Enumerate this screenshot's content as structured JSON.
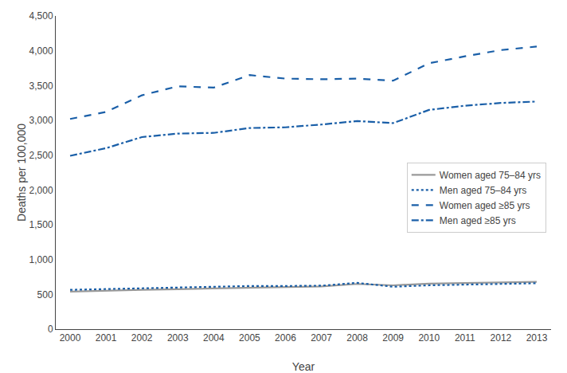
{
  "chart_data": {
    "type": "line",
    "x_label": "Year",
    "y_label": "Deaths per 100,000",
    "x": [
      2000,
      2001,
      2002,
      2003,
      2004,
      2005,
      2006,
      2007,
      2008,
      2009,
      2010,
      2011,
      2012,
      2013
    ],
    "series": [
      {
        "name": "Women aged 75–84 yrs",
        "color": "#999999",
        "line_style": "solid",
        "values": [
          540,
          555,
          565,
          575,
          585,
          600,
          605,
          615,
          650,
          630,
          655,
          665,
          670,
          680
        ]
      },
      {
        "name": "Men aged 75–84 yrs",
        "color": "#1a5fa8",
        "line_style": "dot",
        "values": [
          565,
          575,
          590,
          600,
          605,
          620,
          620,
          625,
          665,
          610,
          630,
          640,
          650,
          660
        ]
      },
      {
        "name": "Women aged ≥85 yrs",
        "color": "#1a5fa8",
        "line_style": "dash",
        "values": [
          3020,
          3120,
          3360,
          3490,
          3470,
          3650,
          3600,
          3590,
          3600,
          3570,
          3820,
          3920,
          4010,
          4060
        ]
      },
      {
        "name": "Men aged ≥85 yrs",
        "color": "#1a5fa8",
        "line_style": "dashdot",
        "values": [
          2490,
          2600,
          2760,
          2810,
          2820,
          2890,
          2900,
          2940,
          2990,
          2960,
          3150,
          3210,
          3250,
          3270
        ]
      }
    ],
    "xlim": [
      1999.6,
      2013.4
    ],
    "xticks": [
      2000,
      2001,
      2002,
      2003,
      2004,
      2005,
      2006,
      2007,
      2008,
      2009,
      2010,
      2011,
      2012,
      2013
    ],
    "ylim": [
      0,
      4500
    ],
    "yticks": [
      0,
      500,
      {
        "value": 1000,
        "label": "1,000"
      },
      {
        "value": 1500,
        "label": "1,500"
      },
      {
        "value": 2000,
        "label": "2,000"
      },
      {
        "value": 2500,
        "label": "2,500"
      },
      {
        "value": 3000,
        "label": "3,000"
      },
      {
        "value": 3500,
        "label": "3,500"
      },
      {
        "value": 4000,
        "label": "4,000"
      },
      {
        "value": 4500,
        "label": "4,500"
      }
    ],
    "grid": false,
    "legend": "right"
  }
}
